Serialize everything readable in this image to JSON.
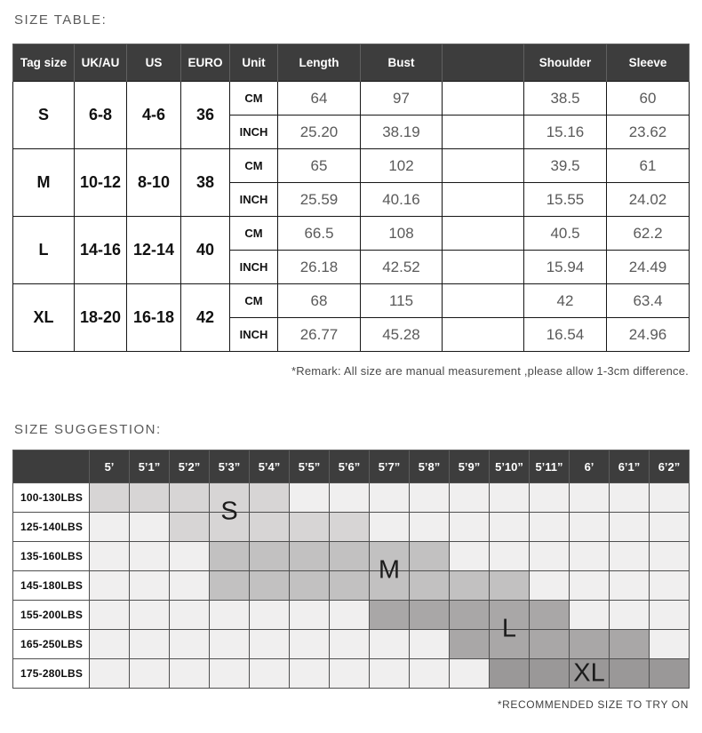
{
  "size_table": {
    "title": "SIZE TABLE:",
    "columns": [
      "Tag size",
      "UK/AU",
      "US",
      "EURO",
      "Unit",
      "Length",
      "Bust",
      "",
      "Shoulder",
      "Sleeve"
    ],
    "unit_labels": [
      "CM",
      "INCH"
    ],
    "sizes": [
      {
        "tag": "S",
        "uk_au": "6-8",
        "us": "4-6",
        "euro": "36",
        "cm": [
          "64",
          "97",
          "",
          "38.5",
          "60"
        ],
        "inch": [
          "25.20",
          "38.19",
          "",
          "15.16",
          "23.62"
        ]
      },
      {
        "tag": "M",
        "uk_au": "10-12",
        "us": "8-10",
        "euro": "38",
        "cm": [
          "65",
          "102",
          "",
          "39.5",
          "61"
        ],
        "inch": [
          "25.59",
          "40.16",
          "",
          "15.55",
          "24.02"
        ]
      },
      {
        "tag": "L",
        "uk_au": "14-16",
        "us": "12-14",
        "euro": "40",
        "cm": [
          "66.5",
          "108",
          "",
          "40.5",
          "62.2"
        ],
        "inch": [
          "26.18",
          "42.52",
          "",
          "15.94",
          "24.49"
        ]
      },
      {
        "tag": "XL",
        "uk_au": "18-20",
        "us": "16-18",
        "euro": "42",
        "cm": [
          "68",
          "115",
          "",
          "42",
          "63.4"
        ],
        "inch": [
          "26.77",
          "45.28",
          "",
          "16.54",
          "24.96"
        ]
      }
    ],
    "remark": "*Remark: All size are manual measurement ,please allow 1-3cm difference."
  },
  "size_suggestion": {
    "title": "SIZE SUGGESTION:",
    "heights": [
      "5’",
      "5’1”",
      "5’2”",
      "5’3”",
      "5’4”",
      "5’5”",
      "5’6”",
      "5’7”",
      "5’8”",
      "5’9”",
      "5’10”",
      "5’11”",
      "6’",
      "6’1”",
      "6’2”"
    ],
    "weights": [
      "100-130LBS",
      "125-140LBS",
      "135-160LBS",
      "145-180LBS",
      "155-200LBS",
      "165-250LBS",
      "175-280LBS"
    ],
    "shade_map": [
      {
        "row": 0,
        "from": 0,
        "to": 4,
        "size": "S"
      },
      {
        "row": 1,
        "from": 2,
        "to": 6,
        "size": "S"
      },
      {
        "row": 2,
        "from": 3,
        "to": 8,
        "size": "M"
      },
      {
        "row": 3,
        "from": 3,
        "to": 10,
        "size": "M"
      },
      {
        "row": 4,
        "from": 7,
        "to": 11,
        "size": "L"
      },
      {
        "row": 5,
        "from": 9,
        "to": 13,
        "size": "L"
      },
      {
        "row": 6,
        "from": 10,
        "to": 14,
        "size": "XL"
      }
    ],
    "region_labels": [
      {
        "label": "S",
        "row": 0,
        "col": 3,
        "anchor": "boundary"
      },
      {
        "label": "M",
        "row": 2,
        "col": 7,
        "anchor": "boundary"
      },
      {
        "label": "L",
        "row": 4,
        "col": 10,
        "anchor": "boundary"
      },
      {
        "label": "XL",
        "row": 6,
        "col": 12,
        "anchor": "center"
      }
    ],
    "footnote": "*RECOMMENDED SIZE TO TRY ON"
  },
  "colors": {
    "header_bg": "#3d3d3d",
    "header_text": "#ffffff",
    "grid_line": "#4f4f4f",
    "size_s": "#d7d5d5",
    "size_m": "#c2c1c1",
    "size_l": "#a9a7a7",
    "size_xl": "#9a9898",
    "cell_unshaded": "#f0efef",
    "value_text": "#5a5a5a"
  }
}
